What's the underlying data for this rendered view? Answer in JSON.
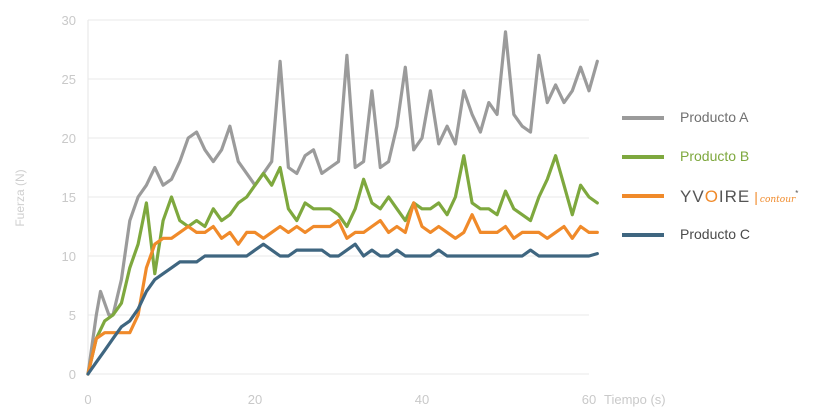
{
  "chart_data": {
    "type": "line",
    "title": "",
    "xlabel": "Tiempo (s)",
    "ylabel": "Fuerza (N)",
    "xlim": [
      0,
      60
    ],
    "ylim": [
      0,
      30
    ],
    "x_ticks": [
      "0",
      "20",
      "40",
      "60"
    ],
    "y_ticks": [
      "0",
      "5",
      "10",
      "15",
      "20",
      "25",
      "30"
    ],
    "grid": "horizontal",
    "legend_position": "right",
    "series": [
      {
        "name": "Producto A",
        "color": "#9b9b9b",
        "points": [
          [
            0,
            0
          ],
          [
            1,
            5
          ],
          [
            1.5,
            7
          ],
          [
            2.5,
            5
          ],
          [
            3,
            5
          ],
          [
            4,
            8
          ],
          [
            5,
            13
          ],
          [
            6,
            15
          ],
          [
            7,
            16
          ],
          [
            8,
            17.5
          ],
          [
            9,
            16
          ],
          [
            10,
            16.5
          ],
          [
            11,
            18
          ],
          [
            12,
            20
          ],
          [
            13,
            20.5
          ],
          [
            14,
            19
          ],
          [
            15,
            18
          ],
          [
            16,
            19
          ],
          [
            17,
            21
          ],
          [
            18,
            18
          ],
          [
            19,
            17
          ],
          [
            20,
            16
          ],
          [
            21,
            17
          ],
          [
            22,
            18
          ],
          [
            23,
            26.5
          ],
          [
            24,
            17.5
          ],
          [
            25,
            17
          ],
          [
            26,
            18.5
          ],
          [
            27,
            19
          ],
          [
            28,
            17
          ],
          [
            29,
            17.5
          ],
          [
            30,
            18
          ],
          [
            31,
            27
          ],
          [
            32,
            17.5
          ],
          [
            33,
            18
          ],
          [
            34,
            24
          ],
          [
            35,
            17.5
          ],
          [
            36,
            18
          ],
          [
            37,
            21
          ],
          [
            38,
            26
          ],
          [
            39,
            19
          ],
          [
            40,
            20
          ],
          [
            41,
            24
          ],
          [
            42,
            19.5
          ],
          [
            43,
            21
          ],
          [
            44,
            19.5
          ],
          [
            45,
            24
          ],
          [
            46,
            22
          ],
          [
            47,
            20.5
          ],
          [
            48,
            23
          ],
          [
            49,
            22
          ],
          [
            50,
            29
          ],
          [
            51,
            22
          ],
          [
            52,
            21
          ],
          [
            53,
            20.5
          ],
          [
            54,
            27
          ],
          [
            55,
            23
          ],
          [
            56,
            24.5
          ],
          [
            57,
            23
          ],
          [
            58,
            24
          ],
          [
            59,
            26
          ],
          [
            60,
            24
          ],
          [
            61,
            26.5
          ]
        ]
      },
      {
        "name": "Producto B",
        "color": "#7ea83e",
        "points": [
          [
            0,
            0
          ],
          [
            1,
            3
          ],
          [
            2,
            4.5
          ],
          [
            3,
            5
          ],
          [
            4,
            6
          ],
          [
            5,
            9
          ],
          [
            6,
            11
          ],
          [
            7,
            14.5
          ],
          [
            8,
            8.5
          ],
          [
            9,
            13
          ],
          [
            10,
            15
          ],
          [
            11,
            13
          ],
          [
            12,
            12.5
          ],
          [
            13,
            13
          ],
          [
            14,
            12.5
          ],
          [
            15,
            14
          ],
          [
            16,
            13
          ],
          [
            17,
            13.5
          ],
          [
            18,
            14.5
          ],
          [
            19,
            15
          ],
          [
            20,
            16
          ],
          [
            21,
            17
          ],
          [
            22,
            16
          ],
          [
            23,
            17.5
          ],
          [
            24,
            14
          ],
          [
            25,
            13
          ],
          [
            26,
            14.5
          ],
          [
            27,
            14
          ],
          [
            28,
            14
          ],
          [
            29,
            14
          ],
          [
            30,
            13.5
          ],
          [
            31,
            12.5
          ],
          [
            32,
            14
          ],
          [
            33,
            16.5
          ],
          [
            34,
            14.5
          ],
          [
            35,
            14
          ],
          [
            36,
            15
          ],
          [
            37,
            14
          ],
          [
            38,
            13
          ],
          [
            39,
            14.5
          ],
          [
            40,
            14
          ],
          [
            41,
            14
          ],
          [
            42,
            14.5
          ],
          [
            43,
            13.5
          ],
          [
            44,
            15
          ],
          [
            45,
            18.5
          ],
          [
            46,
            14.5
          ],
          [
            47,
            14
          ],
          [
            48,
            14
          ],
          [
            49,
            13.5
          ],
          [
            50,
            15.5
          ],
          [
            51,
            14
          ],
          [
            52,
            13.5
          ],
          [
            53,
            13
          ],
          [
            54,
            15
          ],
          [
            55,
            16.5
          ],
          [
            56,
            18.5
          ],
          [
            57,
            16
          ],
          [
            58,
            13.5
          ],
          [
            59,
            16
          ],
          [
            60,
            15
          ],
          [
            61,
            14.5
          ]
        ]
      },
      {
        "name": "YVOIRE contour",
        "color": "#f08a2a",
        "points": [
          [
            0,
            0
          ],
          [
            1,
            3
          ],
          [
            2,
            3.5
          ],
          [
            3,
            3.5
          ],
          [
            4,
            3.5
          ],
          [
            5,
            3.5
          ],
          [
            6,
            5
          ],
          [
            7,
            9
          ],
          [
            8,
            11
          ],
          [
            9,
            11.5
          ],
          [
            10,
            11.5
          ],
          [
            11,
            12
          ],
          [
            12,
            12.5
          ],
          [
            13,
            12
          ],
          [
            14,
            12
          ],
          [
            15,
            12.5
          ],
          [
            16,
            11.5
          ],
          [
            17,
            12
          ],
          [
            18,
            11
          ],
          [
            19,
            12
          ],
          [
            20,
            12
          ],
          [
            21,
            11.5
          ],
          [
            22,
            12
          ],
          [
            23,
            12.5
          ],
          [
            24,
            12
          ],
          [
            25,
            12.5
          ],
          [
            26,
            12
          ],
          [
            27,
            12.5
          ],
          [
            28,
            12.5
          ],
          [
            29,
            12.5
          ],
          [
            30,
            13
          ],
          [
            31,
            11.5
          ],
          [
            32,
            12
          ],
          [
            33,
            12
          ],
          [
            34,
            12.5
          ],
          [
            35,
            13
          ],
          [
            36,
            12
          ],
          [
            37,
            12.5
          ],
          [
            38,
            12
          ],
          [
            39,
            14.5
          ],
          [
            40,
            12.5
          ],
          [
            41,
            12
          ],
          [
            42,
            12.5
          ],
          [
            43,
            12
          ],
          [
            44,
            11.5
          ],
          [
            45,
            12
          ],
          [
            46,
            13.5
          ],
          [
            47,
            12
          ],
          [
            48,
            12
          ],
          [
            49,
            12
          ],
          [
            50,
            12.5
          ],
          [
            51,
            11.5
          ],
          [
            52,
            12
          ],
          [
            53,
            12
          ],
          [
            54,
            12
          ],
          [
            55,
            11.5
          ],
          [
            56,
            12
          ],
          [
            57,
            12.5
          ],
          [
            58,
            11.5
          ],
          [
            59,
            12.5
          ],
          [
            60,
            12
          ],
          [
            61,
            12
          ]
        ]
      },
      {
        "name": "Producto C",
        "color": "#3f6680",
        "points": [
          [
            0,
            0
          ],
          [
            1,
            1
          ],
          [
            2,
            2
          ],
          [
            3,
            3
          ],
          [
            4,
            4
          ],
          [
            5,
            4.5
          ],
          [
            6,
            5.5
          ],
          [
            7,
            7
          ],
          [
            8,
            8
          ],
          [
            9,
            8.5
          ],
          [
            10,
            9
          ],
          [
            11,
            9.5
          ],
          [
            12,
            9.5
          ],
          [
            13,
            9.5
          ],
          [
            14,
            10
          ],
          [
            15,
            10
          ],
          [
            16,
            10
          ],
          [
            17,
            10
          ],
          [
            18,
            10
          ],
          [
            19,
            10
          ],
          [
            20,
            10.5
          ],
          [
            21,
            11
          ],
          [
            22,
            10.5
          ],
          [
            23,
            10
          ],
          [
            24,
            10
          ],
          [
            25,
            10.5
          ],
          [
            26,
            10.5
          ],
          [
            27,
            10.5
          ],
          [
            28,
            10.5
          ],
          [
            29,
            10
          ],
          [
            30,
            10
          ],
          [
            31,
            10.5
          ],
          [
            32,
            11
          ],
          [
            33,
            10
          ],
          [
            34,
            10.5
          ],
          [
            35,
            10
          ],
          [
            36,
            10
          ],
          [
            37,
            10.5
          ],
          [
            38,
            10
          ],
          [
            39,
            10
          ],
          [
            40,
            10
          ],
          [
            41,
            10
          ],
          [
            42,
            10.5
          ],
          [
            43,
            10
          ],
          [
            44,
            10
          ],
          [
            45,
            10
          ],
          [
            46,
            10
          ],
          [
            47,
            10
          ],
          [
            48,
            10
          ],
          [
            49,
            10
          ],
          [
            50,
            10
          ],
          [
            51,
            10
          ],
          [
            52,
            10
          ],
          [
            53,
            10.5
          ],
          [
            54,
            10
          ],
          [
            55,
            10
          ],
          [
            56,
            10
          ],
          [
            57,
            10
          ],
          [
            58,
            10
          ],
          [
            59,
            10
          ],
          [
            60,
            10
          ],
          [
            61,
            10.2
          ]
        ]
      }
    ]
  },
  "legend": {
    "product_a": "Producto A",
    "product_b": "Producto B",
    "yvoire": {
      "y": "YV",
      "o": "O",
      "ire": "IRE",
      "sep": "|",
      "contour": "contour",
      "mark": "*"
    },
    "product_c": "Producto C"
  }
}
